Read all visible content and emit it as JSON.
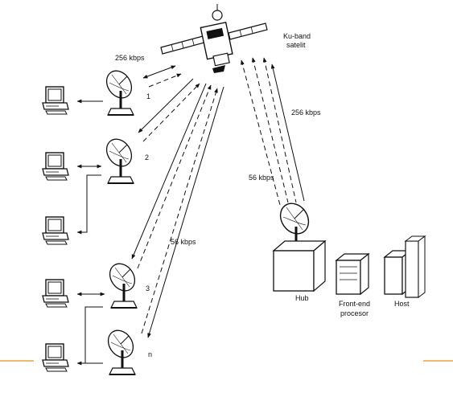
{
  "labels": {
    "satellite_line1": "Ku-band",
    "satellite_line2": "satelit",
    "rate_top_left": "256 kbps",
    "rate_right_upper": "256 kbps",
    "rate_right_lower": "56 kbps",
    "rate_middle": "56 kbps",
    "hub": "Hub",
    "frontend_line1": "Front-end",
    "frontend_line2": "procesor",
    "host": "Host"
  },
  "stations": [
    "1",
    "2",
    "3",
    "n"
  ],
  "colors": {
    "ink": "#111111",
    "accent_line": "#e8a33d",
    "paper": "#ffffff"
  }
}
